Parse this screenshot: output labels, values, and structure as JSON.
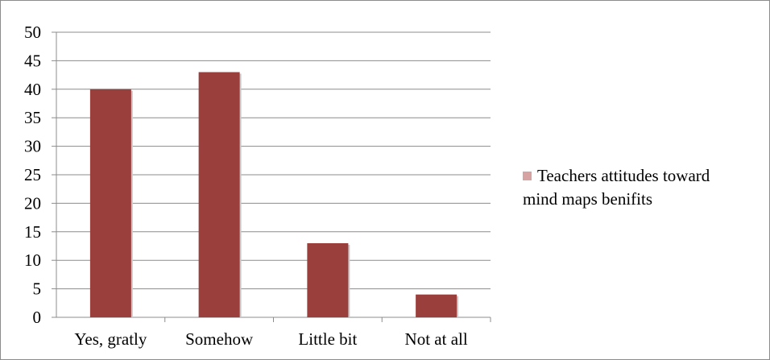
{
  "chart_data": {
    "type": "bar",
    "categories": [
      "Yes, gratly",
      "Somehow",
      "Little bit",
      "Not at all"
    ],
    "series": [
      {
        "name": "Teachers attitudes toward mind maps benifits",
        "values": [
          40,
          43,
          13,
          4
        ]
      }
    ],
    "ylim": [
      0,
      50
    ],
    "yticks": [
      0,
      5,
      10,
      15,
      20,
      25,
      30,
      35,
      40,
      45,
      50
    ],
    "grid": true,
    "legend_position": "right",
    "colors": {
      "bar": "#9b3f3d",
      "bar_shadow": "#c9c9c9",
      "legend_swatch": "#d7a3a2",
      "grid": "#8c8c8c",
      "axis": "#8c8c8c"
    }
  },
  "legend": {
    "line1": "Teachers attitudes toward",
    "line2": "mind maps benifits"
  }
}
